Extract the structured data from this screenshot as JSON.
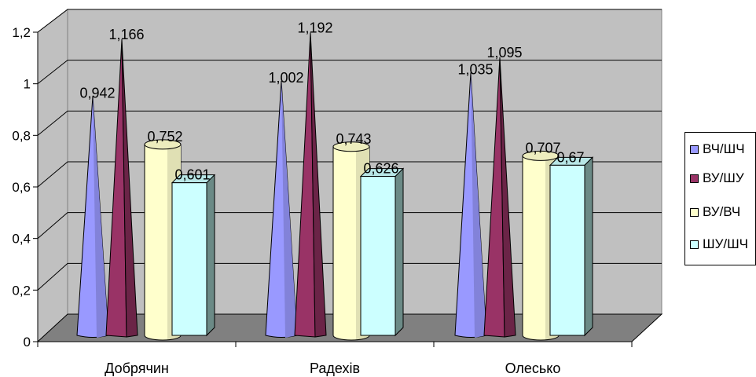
{
  "chart_data": {
    "type": "bar",
    "categories": [
      "Добрячин",
      "Радехів",
      "Олесько"
    ],
    "series": [
      {
        "name": "ВЧ/ШЧ",
        "shape": "cone",
        "color": "#9999ff",
        "values": [
          0.942,
          1.002,
          1.035
        ],
        "labels": [
          "0,942",
          "1,002",
          "1,035"
        ]
      },
      {
        "name": "ВУ/ШУ",
        "shape": "pyramid",
        "color": "#993366",
        "values": [
          1.166,
          1.192,
          1.095
        ],
        "labels": [
          "1,166",
          "1,192",
          "1,095"
        ]
      },
      {
        "name": "ВУ/ВЧ",
        "shape": "cylinder",
        "color": "#ffffcc",
        "values": [
          0.752,
          0.743,
          0.707
        ],
        "labels": [
          "0,752",
          "0,743",
          "0,707"
        ]
      },
      {
        "name": "ШУ/ШЧ",
        "shape": "box",
        "color": "#ccffff",
        "values": [
          0.601,
          0.626,
          0.67
        ],
        "labels": [
          "0,601",
          "0,626",
          "0,67"
        ]
      }
    ],
    "yticks": [
      "0",
      "0,2",
      "0,4",
      "0,6",
      "0,8",
      "1",
      "1,2"
    ],
    "ylim": [
      0,
      1.2
    ],
    "grid": true,
    "legend": "right",
    "colors": {
      "wall": "#c0c0c0",
      "floor": "#808080",
      "grid": "#000000"
    }
  }
}
